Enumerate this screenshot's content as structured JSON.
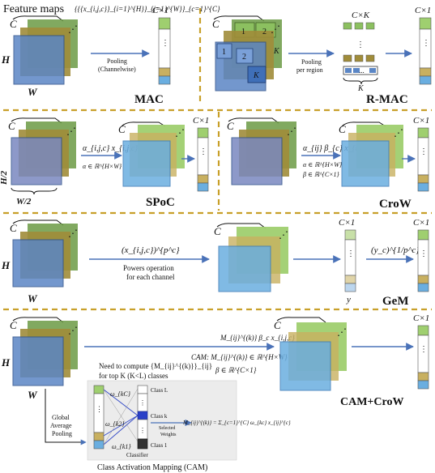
{
  "title": "Feature maps",
  "title_set": "{{{x_{i,j,c}}_{i=1}^{H}}_{j=1}^{W}}_{c=1}^{C}",
  "dims": {
    "C": "C",
    "H": "H",
    "W": "W",
    "K": "K",
    "CxK": "C×K",
    "Cx1": "C×1",
    "H2": "H/2",
    "W2": "W/2",
    "y": "y"
  },
  "mac": {
    "label": "MAC",
    "arrow_text_1": "Pooling",
    "arrow_text_2": "(Channelwise)"
  },
  "rmac": {
    "label": "R-MAC",
    "region_numbers": [
      "1",
      "2",
      "2",
      "1"
    ],
    "arrow_text_1": "Pooling",
    "arrow_text_2": "per region",
    "dots": "..."
  },
  "spoc": {
    "label": "SPoC",
    "formula": "α_{i,j,c} x_{i,j,c}",
    "condition": "α ∈ ℝ^{H×W}"
  },
  "crow": {
    "label": "CroW",
    "formula": "α_{ij} β_{c} x_{i,j,c}",
    "condition_1": "α ∈ ℝ^{H×W}",
    "condition_2": "β ∈ ℝ^{C×1}"
  },
  "gem": {
    "label": "GeM",
    "formula_1": "(x_{i,j,c})^{p^c}",
    "arrow_text_1": "Powers operation",
    "arrow_text_2": "for each channel",
    "formula_2": "(y_c)^{1/p^c}"
  },
  "camcrow": {
    "label": "CAM+CroW",
    "formula": "M_{ij}^{(k)} β_c x_{i,j,c}",
    "cam_condition": "CAM: M_{ij}^{(k)} ∈ ℝ^{H×W}",
    "beta_condition": "β ∈ ℝ^{C×1}",
    "need_text_1": "Need to compute {M_{ij}^{(k)}}_{ij}",
    "need_text_2": "for top K (K<L) classes",
    "gap_text": [
      "Global",
      "Average",
      "Pooling"
    ],
    "weights": [
      "ω_{kC}",
      "ω_{k2}",
      "ω_{k1}"
    ],
    "classes": [
      "Class L",
      "Class k",
      "Class 1"
    ],
    "classifier": "Classifier",
    "selected_weights": [
      "Selected",
      "Weights"
    ],
    "cam_formula": "M_{ij}^{(k)} = Σ_{c=1}^{C} ω_{kc} x_{ij}^{c}",
    "cam_caption": "Class Activation Mapping (CAM)"
  },
  "colors": {
    "blue_face": "#5b86c5",
    "olive_face": "#a08c3a",
    "green_face": "#6b9a44",
    "light_green": "#9fcf6f",
    "light_blue": "#6aaee0",
    "separator": "#c8a02a",
    "arrow": "#4a72b8",
    "cam_panel": "#ececec",
    "cam_caption": "#2a5fb0"
  }
}
